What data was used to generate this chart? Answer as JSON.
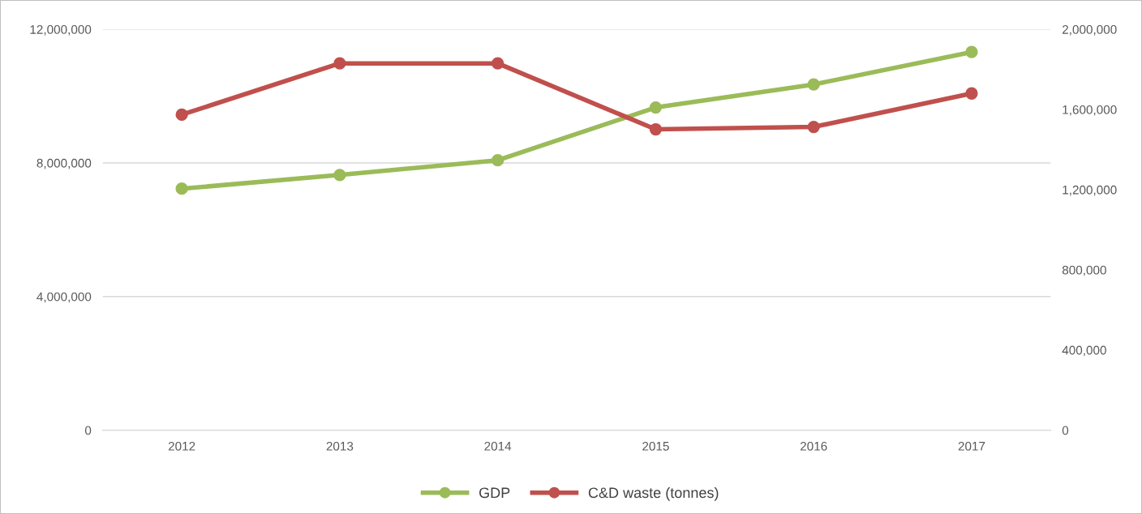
{
  "chart_data": {
    "type": "line",
    "categories": [
      "2012",
      "2013",
      "2014",
      "2015",
      "2016",
      "2017"
    ],
    "series": [
      {
        "name": "GDP",
        "color": "#9bbb59",
        "values": [
          7230000,
          7640000,
          8080000,
          9660000,
          10350000,
          11320000
        ]
      },
      {
        "name": "C&D waste (tonnes)",
        "color": "#c0504d",
        "axis": "y2",
        "values": [
          1574000,
          1830000,
          1830000,
          1501000,
          1513000,
          1680000
        ]
      }
    ],
    "ylim": [
      0,
      12000000
    ],
    "yticks": [
      {
        "value": 0,
        "label": "0"
      },
      {
        "value": 4000000,
        "label": "4,000,000"
      },
      {
        "value": 8000000,
        "label": "8,000,000"
      },
      {
        "value": 12000000,
        "label": "12,000,000"
      }
    ],
    "y2lim": [
      0,
      2000000
    ],
    "y2ticks": [
      {
        "value": 0,
        "label": "0"
      },
      {
        "value": 400000,
        "label": "400,000"
      },
      {
        "value": 800000,
        "label": "800,000"
      },
      {
        "value": 1200000,
        "label": "1,200,000"
      },
      {
        "value": 1600000,
        "label": "1,600,000"
      },
      {
        "value": 2000000,
        "label": "2,000,000"
      }
    ],
    "grid": "y",
    "legend": "bottom",
    "marker": "circle",
    "line_style": "solid"
  }
}
